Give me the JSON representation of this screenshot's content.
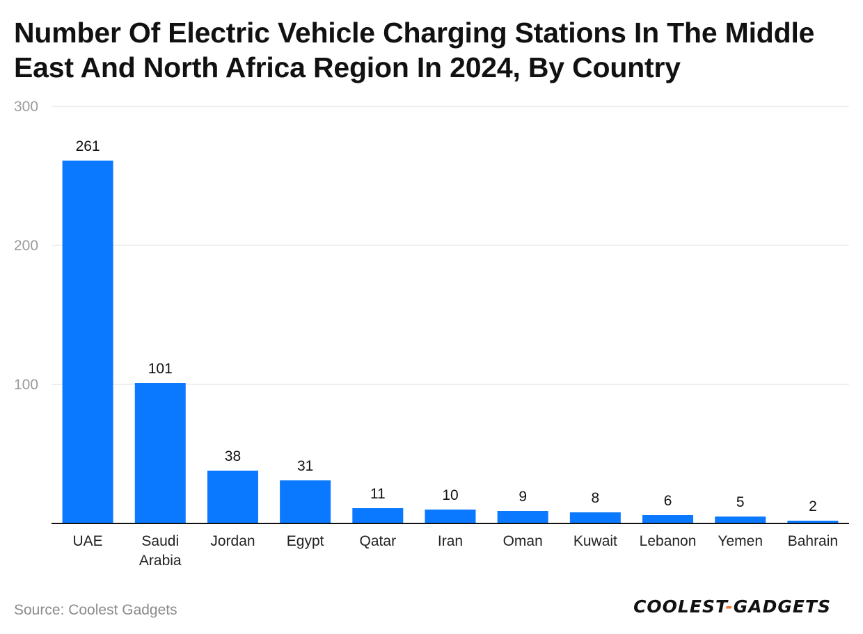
{
  "title": "Number Of Electric Vehicle Charging Stations In The Middle East And North Africa Region In 2024, By Country",
  "source": "Source: Coolest Gadgets",
  "logo": {
    "left": "COOLEST",
    "sep": "-",
    "right": "GADGETS"
  },
  "colors": {
    "bar": "#0a78ff",
    "grid": "#dddddd",
    "axis": "#111111",
    "tick": "#9a9a9a",
    "logo_accent": "#f07a2a"
  },
  "chart_data": {
    "type": "bar",
    "categories": [
      "UAE",
      "Saudi Arabia",
      "Jordan",
      "Egypt",
      "Qatar",
      "Iran",
      "Oman",
      "Kuwait",
      "Lebanon",
      "Yemen",
      "Bahrain"
    ],
    "category_lines": [
      [
        "UAE"
      ],
      [
        "Saudi",
        "Arabia"
      ],
      [
        "Jordan"
      ],
      [
        "Egypt"
      ],
      [
        "Qatar"
      ],
      [
        "Iran"
      ],
      [
        "Oman"
      ],
      [
        "Kuwait"
      ],
      [
        "Lebanon"
      ],
      [
        "Yemen"
      ],
      [
        "Bahrain"
      ]
    ],
    "values": [
      261,
      101,
      38,
      31,
      11,
      10,
      9,
      8,
      6,
      5,
      2
    ],
    "ylim": [
      0,
      300
    ],
    "yticks": [
      100,
      200,
      300
    ],
    "grid": true
  }
}
